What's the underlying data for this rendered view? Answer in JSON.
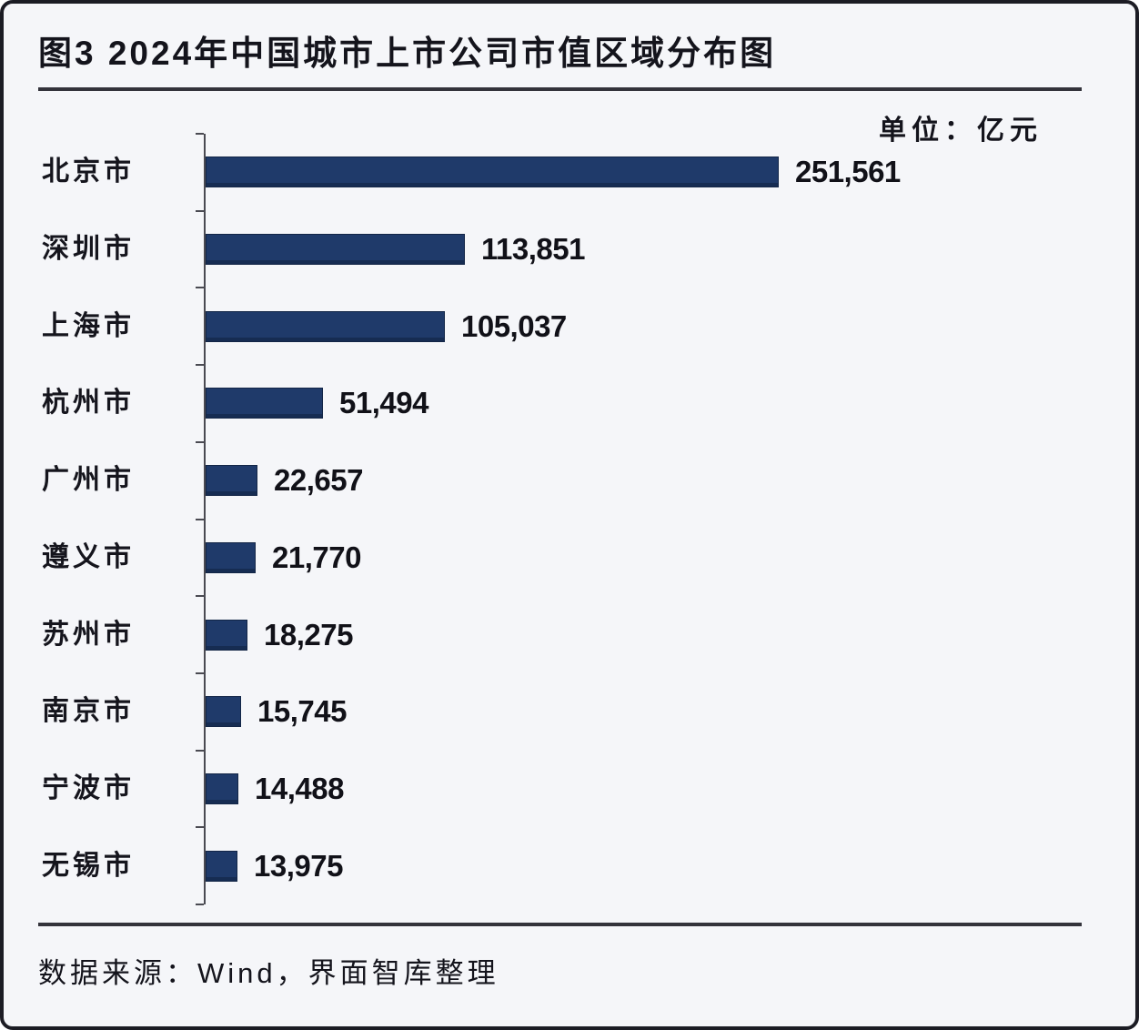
{
  "header": {
    "title": "图3 2024年中国城市上市公司市值区域分布图",
    "unit_label": "单位：亿元"
  },
  "footer": {
    "source": "数据来源：Wind，界面智库整理"
  },
  "colors": {
    "bar_fill": "#1f3a6a",
    "bar_border": "#132647",
    "text": "#15151d",
    "rule": "#33333b",
    "axis": "#4a4a52",
    "background": "#f5f6f9",
    "frame_border": "#1c1c24"
  },
  "chart_data": {
    "type": "bar",
    "orientation": "horizontal",
    "title": "2024年中国城市上市公司市值区域分布图",
    "unit": "亿元",
    "xlabel": "",
    "ylabel": "",
    "grid": false,
    "legend": false,
    "xlim": [
      0,
      265000
    ],
    "categories": [
      "北京市",
      "深圳市",
      "上海市",
      "杭州市",
      "广州市",
      "遵义市",
      "苏州市",
      "南京市",
      "宁波市",
      "无锡市"
    ],
    "values": [
      251561,
      113851,
      105037,
      51494,
      22657,
      21770,
      18275,
      15745,
      14488,
      13975
    ],
    "value_labels": [
      "251,561",
      "113,851",
      "105,037",
      "51,494",
      "22,657",
      "21,770",
      "18,275",
      "15,745",
      "14,488",
      "13,975"
    ]
  }
}
